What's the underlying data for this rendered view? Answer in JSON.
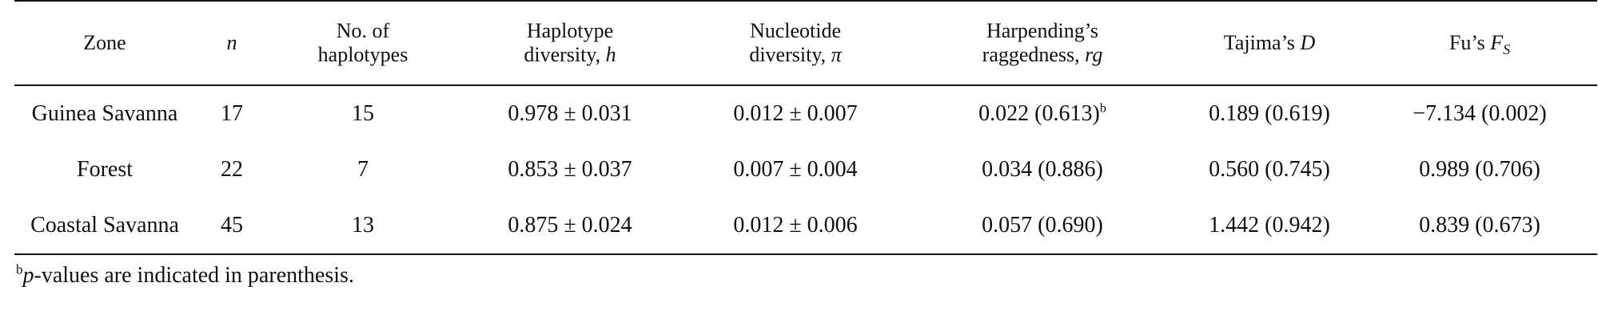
{
  "table": {
    "headers": [
      {
        "line1": "Zone",
        "line2": ""
      },
      {
        "line1": "",
        "line2": "",
        "italic": "n"
      },
      {
        "line1": "No. of",
        "line2": "haplotypes"
      },
      {
        "line1": "Haplotype",
        "line2": "diversity, ",
        "italic": "h"
      },
      {
        "line1": "Nucleotide",
        "line2": "diversity, ",
        "italic": "π"
      },
      {
        "line1": "Harpending’s",
        "line2": "raggedness, ",
        "italic": "rg"
      },
      {
        "line1": "Tajima’s ",
        "line2": "",
        "italic": "D"
      },
      {
        "line1": "Fu’s ",
        "line2": "",
        "italic": "F",
        "sub": "S"
      }
    ],
    "rows": [
      {
        "zone": "Guinea Savanna",
        "n": "17",
        "haplotypes": "15",
        "h": "0.978 ± 0.031",
        "pi": "0.012 ± 0.007",
        "rg": "0.022 (0.613)",
        "rg_note": "b",
        "tajima": "0.189 (0.619)",
        "fu": "−7.134 (0.002)"
      },
      {
        "zone": "Forest",
        "n": "22",
        "haplotypes": "7",
        "h": "0.853 ± 0.037",
        "pi": "0.007 ± 0.004",
        "rg": "0.034 (0.886)",
        "rg_note": "",
        "tajima": "0.560 (0.745)",
        "fu": "0.989 (0.706)"
      },
      {
        "zone": "Coastal Savanna",
        "n": "45",
        "haplotypes": "13",
        "h": "0.875 ± 0.024",
        "pi": "0.012 ± 0.006",
        "rg": "0.057 (0.690)",
        "rg_note": "",
        "tajima": "1.442 (0.942)",
        "fu": "0.839 (0.673)"
      }
    ]
  },
  "footnote": {
    "mark": "b",
    "italic": "p",
    "text": "-values are indicated in parenthesis."
  }
}
